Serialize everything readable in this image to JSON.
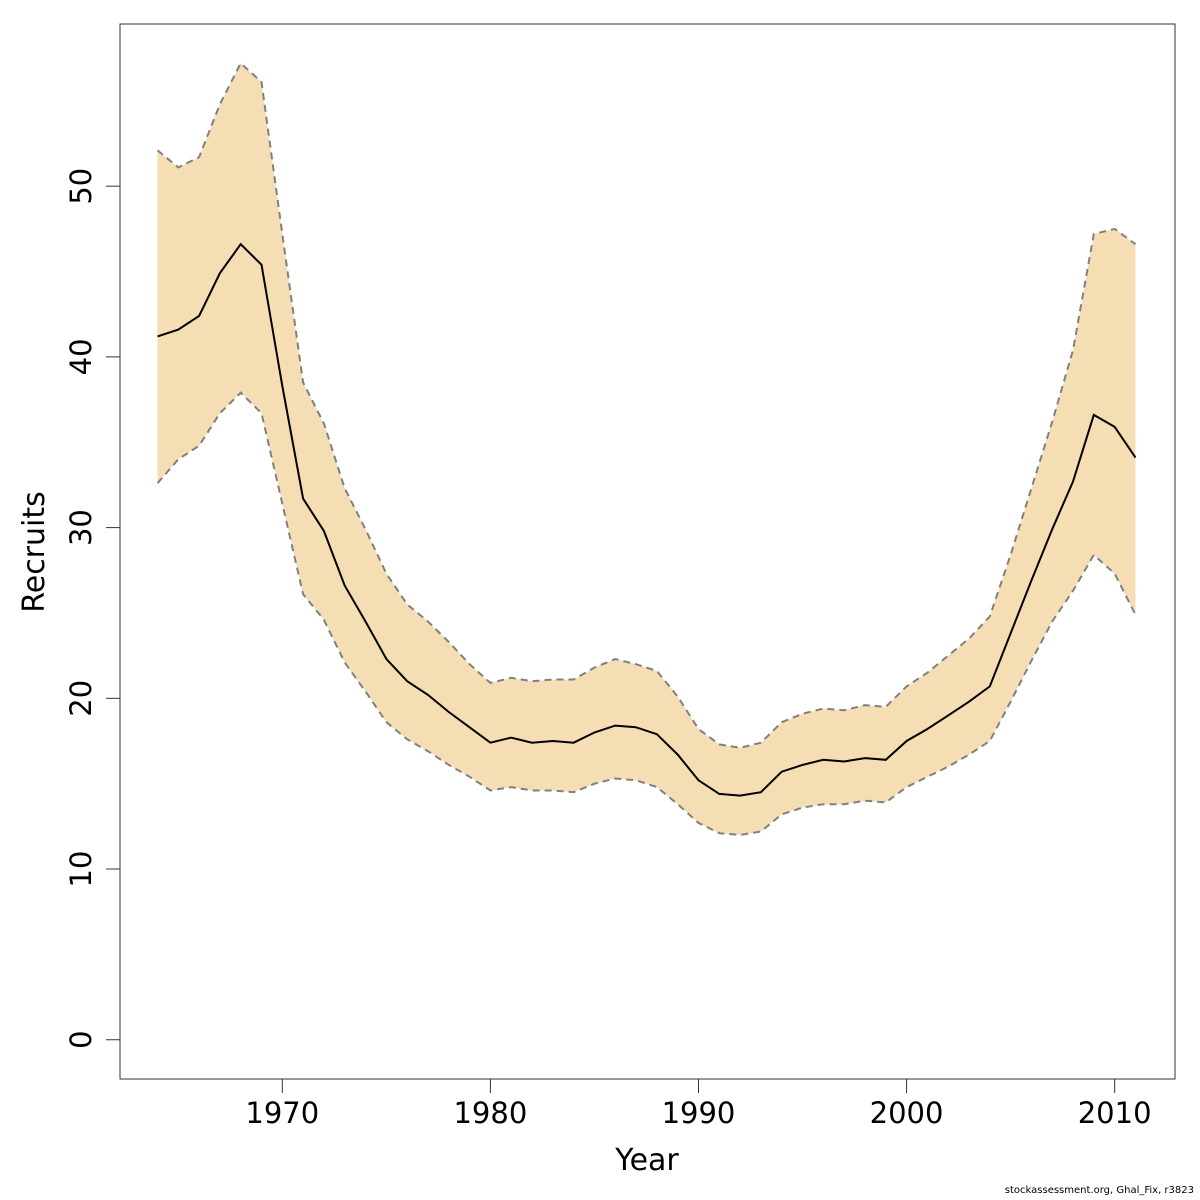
{
  "chart_data": {
    "type": "area",
    "xlabel": "Year",
    "ylabel": "Recruits",
    "xlim": [
      1962.2,
      2012.9
    ],
    "ylim": [
      -2.3,
      59.5
    ],
    "x_ticks": [
      1970,
      1980,
      1990,
      2000,
      2010
    ],
    "y_ticks": [
      0,
      10,
      20,
      30,
      40,
      50
    ],
    "x": [
      1964,
      1965,
      1966,
      1967,
      1968,
      1969,
      1970,
      1971,
      1972,
      1973,
      1974,
      1975,
      1976,
      1977,
      1978,
      1979,
      1980,
      1981,
      1982,
      1983,
      1984,
      1985,
      1986,
      1987,
      1988,
      1989,
      1990,
      1991,
      1992,
      1993,
      1994,
      1995,
      1996,
      1997,
      1998,
      1999,
      2000,
      2001,
      2002,
      2003,
      2004,
      2005,
      2006,
      2007,
      2008,
      2009,
      2010,
      2011
    ],
    "series": [
      {
        "role": "estimate",
        "values": [
          41.2,
          41.6,
          42.4,
          44.9,
          46.6,
          45.4,
          38.3,
          31.7,
          29.8,
          26.6,
          24.5,
          22.3,
          21.0,
          20.2,
          19.2,
          18.3,
          17.4,
          17.7,
          17.4,
          17.5,
          17.4,
          18.0,
          18.4,
          18.3,
          17.9,
          16.7,
          15.2,
          14.4,
          14.3,
          14.5,
          15.7,
          16.1,
          16.4,
          16.3,
          16.5,
          16.4,
          17.5,
          18.2,
          19.0,
          19.8,
          20.7,
          23.8,
          26.9,
          29.9,
          32.7,
          36.6,
          35.9,
          34.1
        ],
        "color": "#000000"
      },
      {
        "role": "upper",
        "values": [
          52.1,
          51.1,
          51.7,
          54.8,
          57.2,
          56.1,
          47.2,
          38.5,
          36.1,
          32.3,
          29.9,
          27.3,
          25.5,
          24.5,
          23.3,
          22.0,
          20.9,
          21.2,
          21.0,
          21.1,
          21.1,
          21.8,
          22.3,
          22.0,
          21.6,
          20.1,
          18.2,
          17.3,
          17.1,
          17.4,
          18.6,
          19.1,
          19.4,
          19.3,
          19.6,
          19.5,
          20.7,
          21.5,
          22.5,
          23.5,
          24.8,
          28.4,
          32.3,
          36.2,
          40.4,
          47.2,
          47.5,
          46.6
        ],
        "color": "#808080",
        "dash": "dashed"
      },
      {
        "role": "lower",
        "values": [
          32.6,
          34.0,
          34.8,
          36.7,
          37.9,
          36.7,
          31.4,
          26.1,
          24.6,
          22.1,
          20.4,
          18.6,
          17.6,
          16.9,
          16.1,
          15.4,
          14.6,
          14.8,
          14.6,
          14.6,
          14.5,
          15.0,
          15.3,
          15.2,
          14.8,
          13.8,
          12.7,
          12.1,
          12.0,
          12.2,
          13.2,
          13.6,
          13.8,
          13.8,
          14.0,
          13.9,
          14.8,
          15.4,
          16.0,
          16.7,
          17.5,
          19.8,
          22.2,
          24.5,
          26.3,
          28.4,
          27.3,
          24.9
        ]
      }
    ],
    "band_color": "#f5deb3",
    "grid": false,
    "box": true
  },
  "footnote": "stockassessment.org, Ghal_Fix, r3823"
}
